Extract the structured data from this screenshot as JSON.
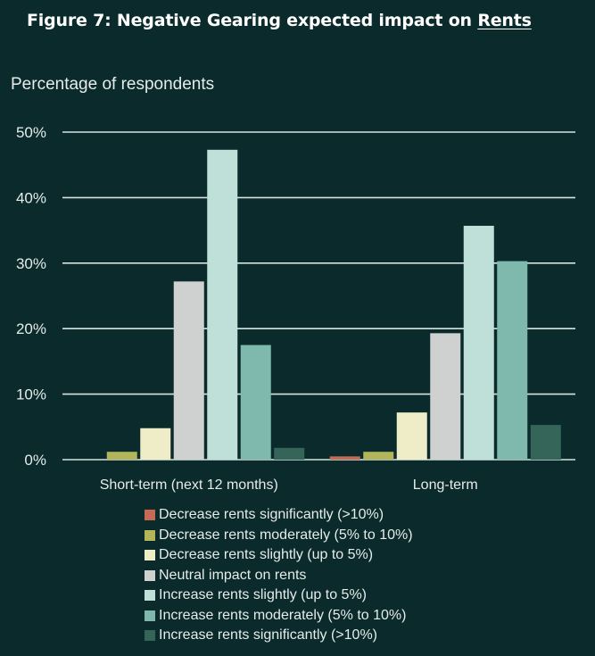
{
  "header": {
    "title_prefix": "Figure 7: Negative Gearing expected impact on ",
    "title_underlined": "Rents"
  },
  "chart_data": {
    "type": "bar",
    "ylabel": "Percentage of respondents",
    "ylim": [
      0,
      50
    ],
    "yticks": [
      "0%",
      "10%",
      "20%",
      "30%",
      "40%",
      "50%"
    ],
    "grid": true,
    "legend_position": "bottom",
    "categories": [
      "Short-term (next 12 months)",
      "Long-term"
    ],
    "series": [
      {
        "name": "Decrease rents significantly (>10%)",
        "color": "#c46a55",
        "values": [
          0,
          0.5
        ]
      },
      {
        "name": "Decrease rents moderately (5% to 10%)",
        "color": "#b2b55a",
        "values": [
          1.2,
          1.2
        ]
      },
      {
        "name": "Decrease rents slightly (up to 5%)",
        "color": "#efedc8",
        "values": [
          4.8,
          7.2
        ]
      },
      {
        "name": "Neutral impact on rents",
        "color": "#cfd1d0",
        "values": [
          27.2,
          19.3
        ]
      },
      {
        "name": "Increase rents slightly (up to 5%)",
        "color": "#bfe0d8",
        "values": [
          47.3,
          35.7
        ]
      },
      {
        "name": "Increase rents moderately (5% to 10%)",
        "color": "#7fb8ac",
        "values": [
          17.5,
          30.3
        ]
      },
      {
        "name": "Increase rents significantly (>10%)",
        "color": "#356459",
        "values": [
          1.8,
          5.3
        ]
      }
    ]
  }
}
